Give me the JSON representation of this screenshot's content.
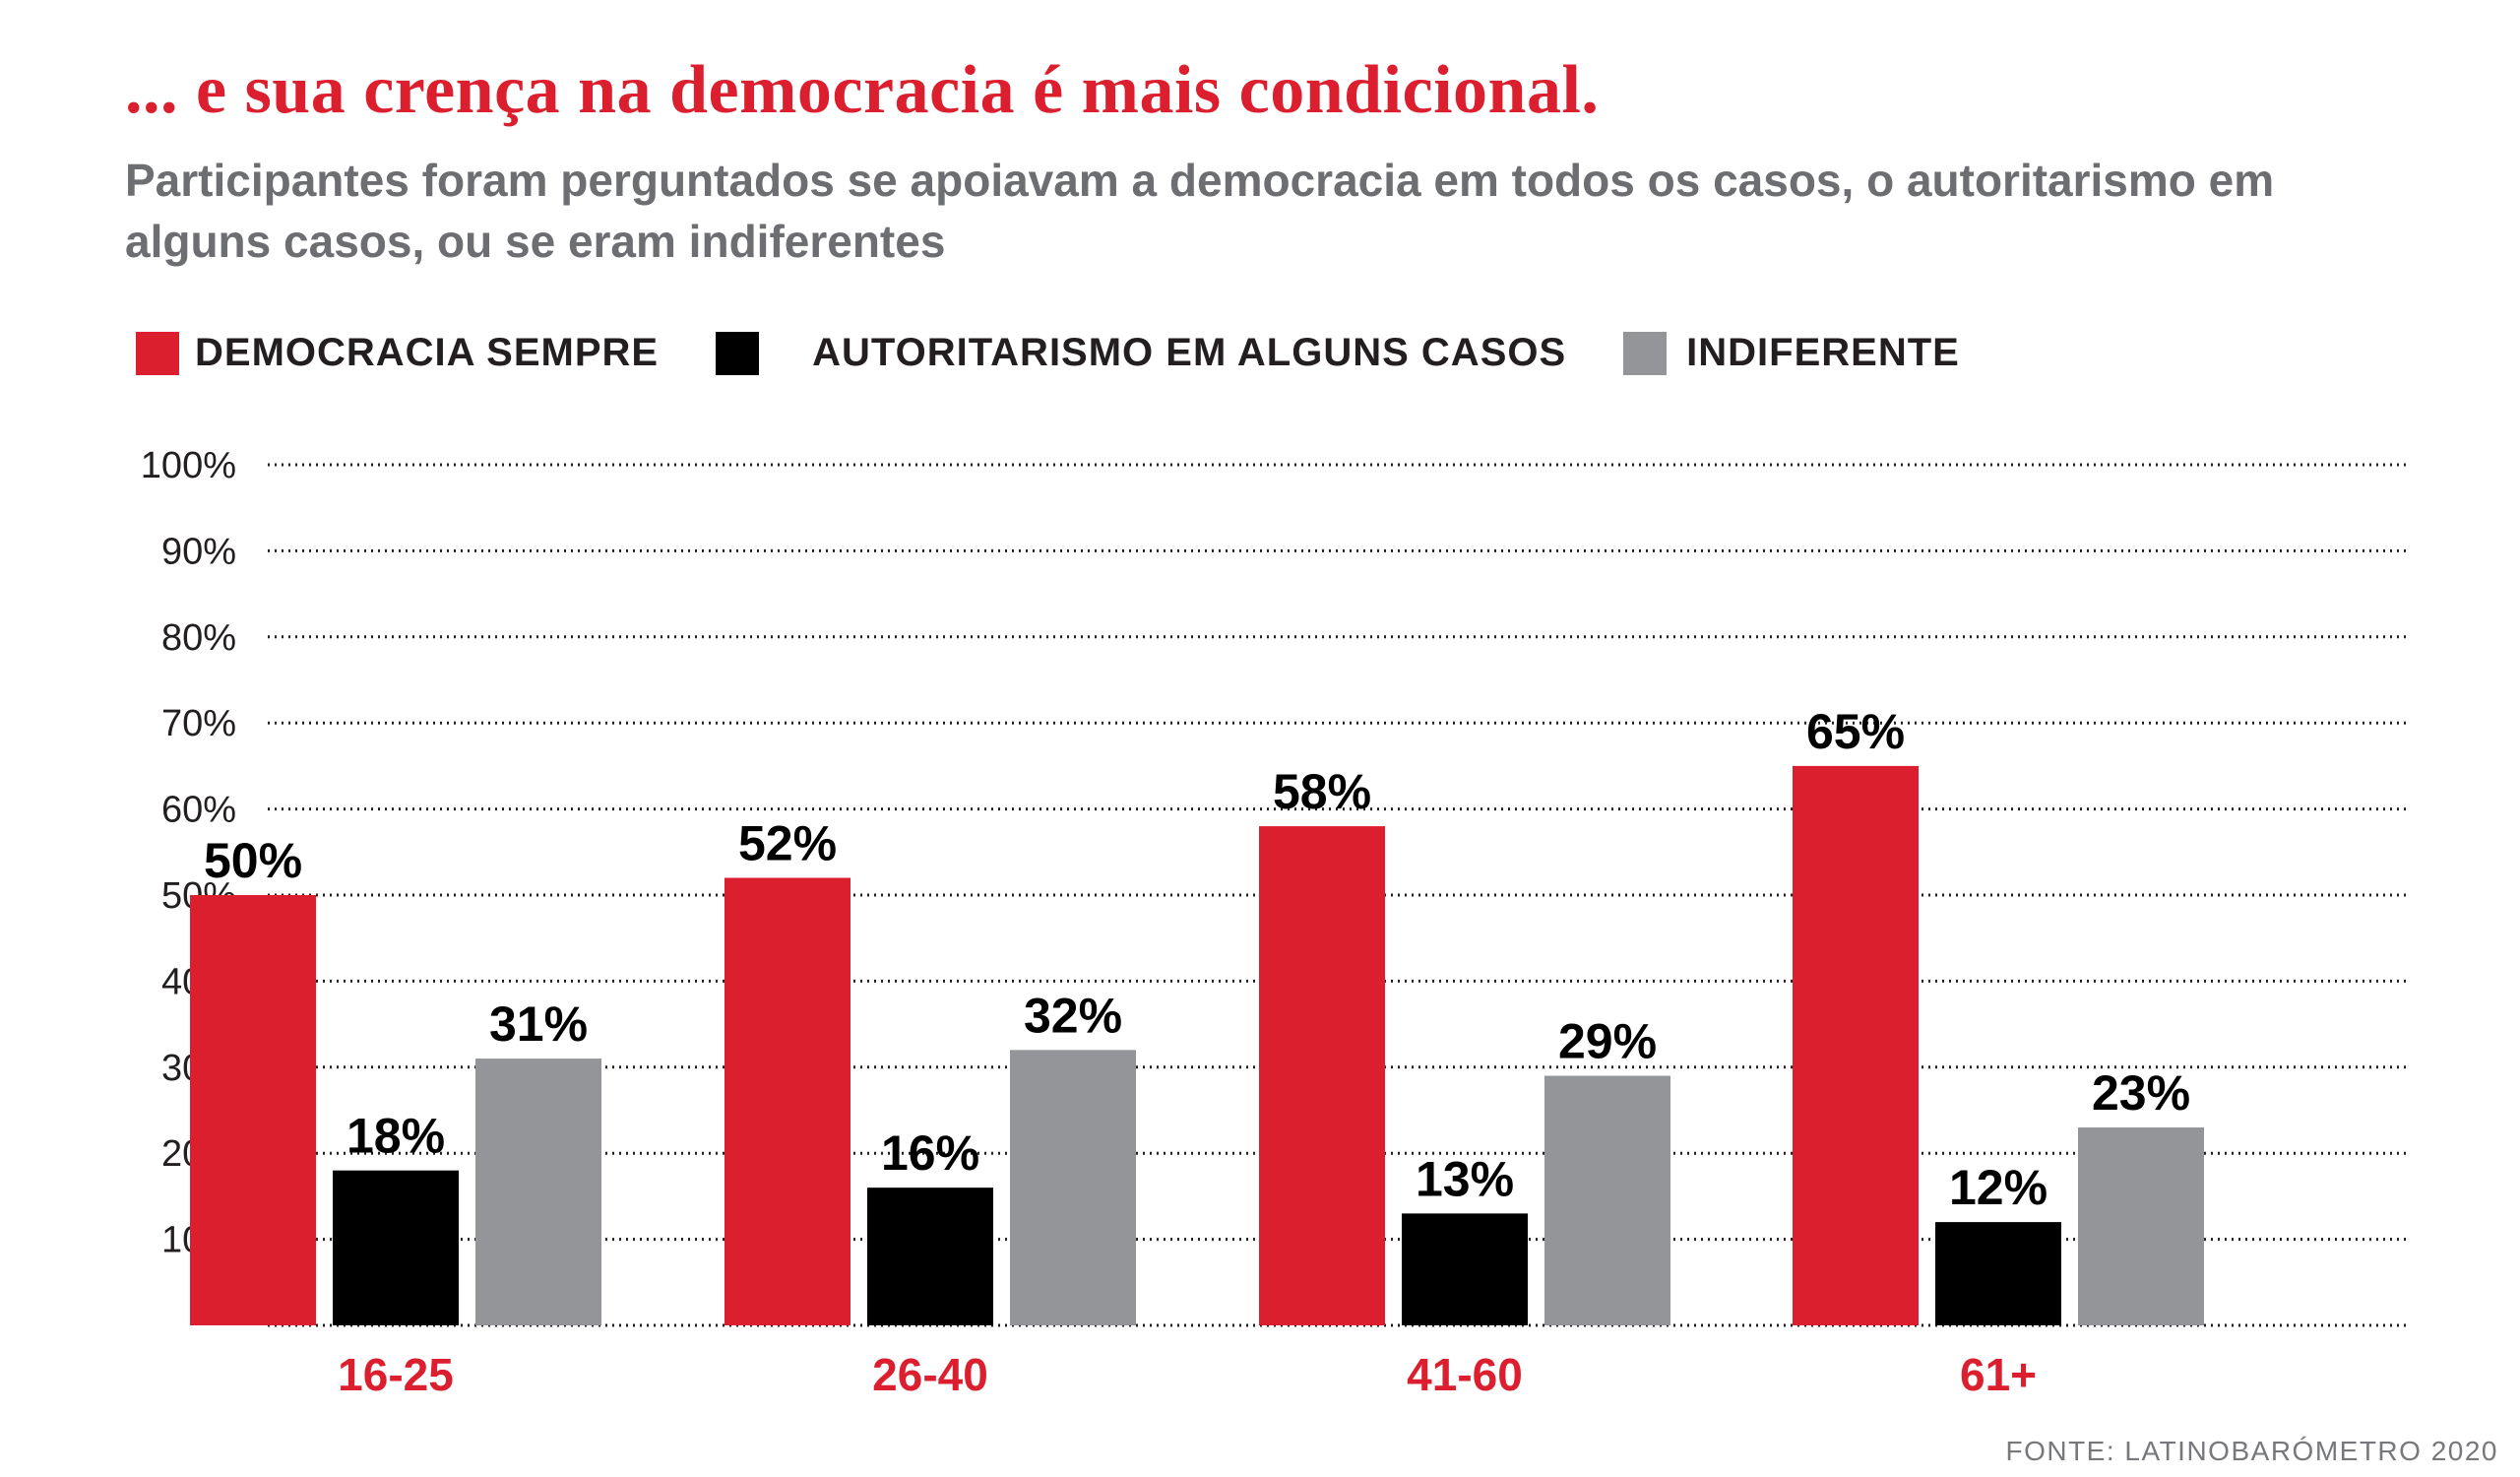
{
  "header": {
    "title": "... e sua crença na democracia é mais condicional.",
    "subtitle": "Participantes foram perguntados se apoiavam a democracia em todos os casos, o autoritarismo em alguns casos, ou se eram indiferentes"
  },
  "footer": {
    "source": "FONTE: LATINOBARÓMETRO 2020"
  },
  "colors": {
    "accent": "#db1f2e",
    "black": "#000000",
    "grey": "#939598",
    "subtitle": "#6d6e71"
  },
  "chart_data": {
    "type": "bar",
    "categories": [
      "16-25",
      "26-40",
      "41-60",
      "61+"
    ],
    "series": [
      {
        "name": "DEMOCRACIA SEMPRE",
        "color": "#db1f2e",
        "values": [
          50,
          52,
          58,
          65
        ]
      },
      {
        "name": "AUTORITARISMO EM ALGUNS CASOS",
        "color": "#000000",
        "values": [
          18,
          16,
          13,
          12
        ]
      },
      {
        "name": "INDIFERENTE",
        "color": "#939598",
        "values": [
          31,
          32,
          29,
          23
        ]
      }
    ],
    "value_suffix": "%",
    "ylim": [
      0,
      100
    ],
    "yticks": [
      10,
      20,
      30,
      40,
      50,
      60,
      70,
      80,
      90,
      100
    ],
    "ytick_labels": [
      "10%",
      "20%",
      "30%",
      "40%",
      "50%",
      "60%",
      "70%",
      "80%",
      "90%",
      "100%"
    ],
    "grid": true,
    "grid_style": "dotted",
    "legend_position": "top-left",
    "xlabel": "",
    "ylabel": ""
  }
}
